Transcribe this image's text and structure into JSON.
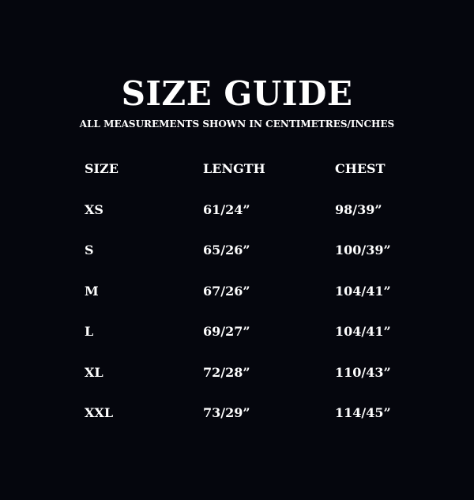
{
  "title": "SIZE GUIDE",
  "subtitle": "ALL MEASUREMENTS SHOWN IN CENTIMETRES/INCHES",
  "colors": {
    "background": "#05060d",
    "text": "#ffffff"
  },
  "table": {
    "headers": [
      "SIZE",
      "LENGTH",
      "CHEST"
    ],
    "rows": [
      [
        "XS",
        "61/24”",
        "98/39”"
      ],
      [
        "S",
        "65/26”",
        "100/39”"
      ],
      [
        "M",
        "67/26”",
        "104/41”"
      ],
      [
        "L",
        "69/27”",
        "104/41”"
      ],
      [
        "XL",
        "72/28”",
        "110/43”"
      ],
      [
        "XXL",
        "73/29”",
        "114/45”"
      ]
    ]
  }
}
